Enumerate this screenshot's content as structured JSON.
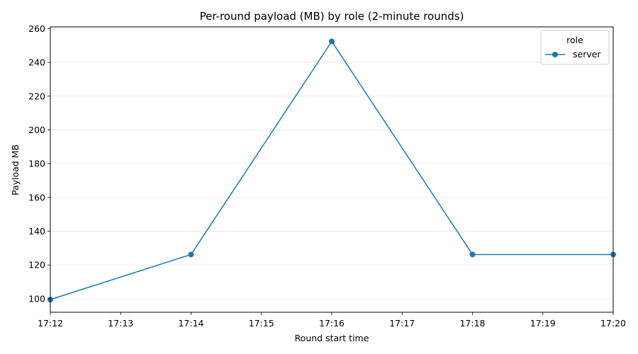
{
  "chart_data": {
    "type": "line",
    "title": "Per-round payload (MB) by role (2-minute rounds)",
    "xlabel": "Round start time",
    "ylabel": "Payload MB",
    "x_ticks": [
      "17:12",
      "17:13",
      "17:14",
      "17:15",
      "17:16",
      "17:17",
      "17:18",
      "17:19",
      "17:20"
    ],
    "y_ticks": [
      100,
      120,
      140,
      160,
      180,
      200,
      220,
      240,
      260
    ],
    "xlim": [
      "17:12",
      "17:20"
    ],
    "ylim": [
      92,
      261
    ],
    "grid": "horizontal",
    "legend": {
      "title": "role",
      "placement": "top-right"
    },
    "series": [
      {
        "name": "server",
        "color": "#1f77b4",
        "marker": "circle",
        "x": [
          "17:12",
          "17:14",
          "17:16",
          "17:18",
          "17:20"
        ],
        "y": [
          99.5,
          126.2,
          252.4,
          126.2,
          126.2
        ]
      }
    ]
  }
}
